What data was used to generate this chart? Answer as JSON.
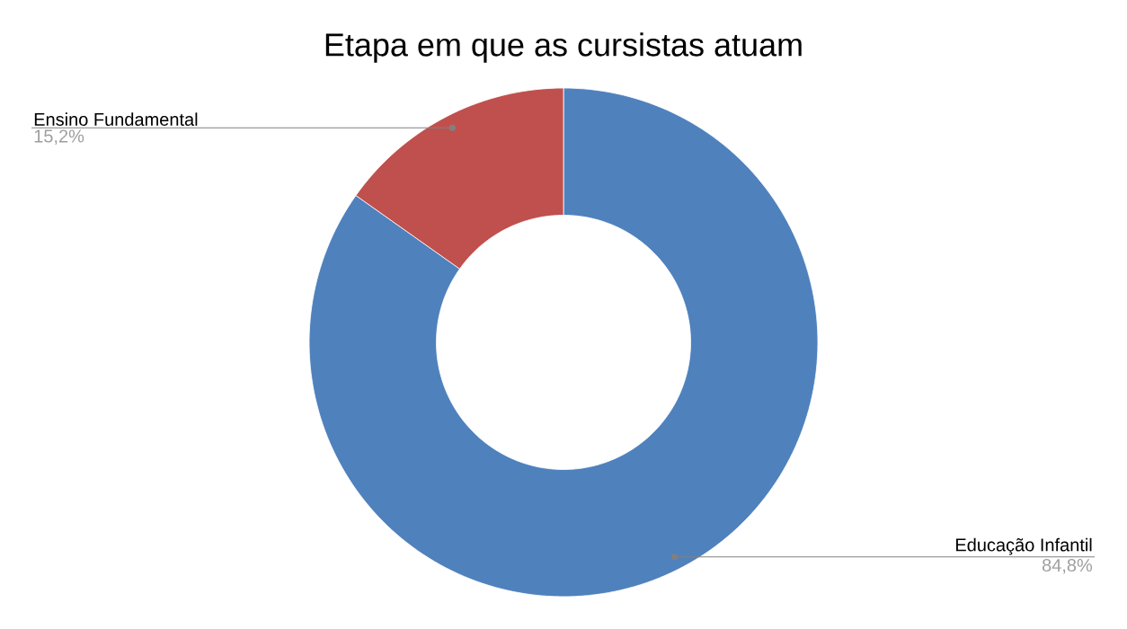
{
  "chart_data": {
    "type": "donut",
    "title": "Etapa em que as cursistas atuam",
    "categories": [
      "Educação Infantil",
      "Ensino Fundamental"
    ],
    "values": [
      84.8,
      15.2
    ],
    "colors": [
      "#4f81bd",
      "#c0504d"
    ],
    "value_labels": [
      "84,8%",
      "15,2%"
    ]
  }
}
